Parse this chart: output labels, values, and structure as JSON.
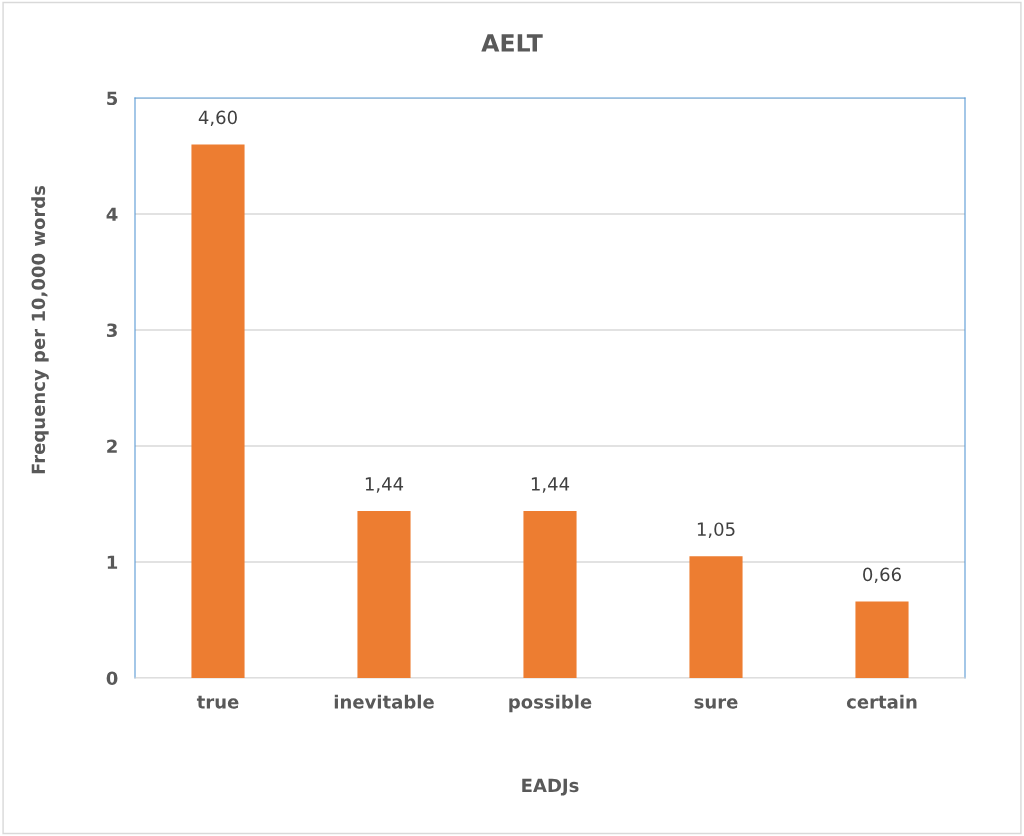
{
  "chart_data": {
    "type": "bar",
    "title": "AELT",
    "xlabel": "EADJs",
    "ylabel": "Frequency per 10,000 words",
    "categories": [
      "true",
      "inevitable",
      "possible",
      "sure",
      "certain"
    ],
    "values": [
      4.6,
      1.44,
      1.44,
      1.05,
      0.66
    ],
    "value_labels": [
      "4,60",
      "1,44",
      "1,44",
      "1,05",
      "0,66"
    ],
    "color": "#ed7d31",
    "ylim": [
      0,
      5
    ],
    "yticks": [
      0,
      1,
      2,
      3,
      4,
      5
    ],
    "grid": "y",
    "legend": false
  }
}
